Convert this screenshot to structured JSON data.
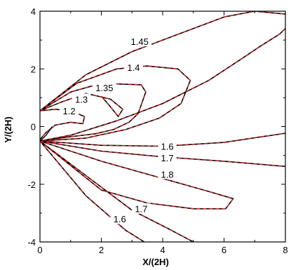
{
  "chart_data": {
    "type": "line",
    "title": "",
    "xlabel": "X/(2H)",
    "ylabel": "Y/(2H)",
    "xlim": [
      0,
      8
    ],
    "ylim": [
      -4,
      4
    ],
    "x_ticks": [
      0,
      2,
      4,
      6,
      8
    ],
    "y_ticks": [
      -4,
      -2,
      0,
      2,
      4
    ],
    "x_tick_labels": [
      "0",
      "2",
      "4",
      "6",
      "8"
    ],
    "y_tick_labels": [
      "-4",
      "-2",
      "0",
      "2",
      "4"
    ],
    "series_styles": {
      "reference": {
        "color": "#000000",
        "dash": "solid"
      },
      "computed": {
        "color": "#d62020",
        "dash": "dashed"
      }
    },
    "contours": [
      {
        "level": "1.2",
        "points": [
          [
            0,
            0.55
          ],
          [
            0.5,
            0.6
          ],
          [
            1.0,
            0.55
          ],
          [
            1.45,
            0.35
          ],
          [
            1.4,
            0.1
          ],
          [
            1.0,
            0.15
          ],
          [
            0.5,
            0.05
          ],
          [
            0.2,
            -0.2
          ],
          [
            0,
            -0.45
          ]
        ]
      },
      {
        "level": "1.3",
        "points": [
          [
            0,
            0.55
          ],
          [
            0.7,
            0.85
          ],
          [
            1.5,
            1.15
          ],
          [
            2.3,
            0.95
          ],
          [
            2.7,
            0.6
          ],
          [
            2.55,
            0.35
          ],
          [
            2.25,
            0.75
          ],
          [
            2.0,
            1.05
          ]
        ]
      },
      {
        "level": "1.35",
        "points": [
          [
            0,
            0.55
          ],
          [
            1.0,
            1.2
          ],
          [
            2.0,
            1.5
          ],
          [
            3.3,
            1.45
          ],
          [
            3.45,
            1.2
          ],
          [
            3.2,
            0.45
          ],
          [
            2.9,
            0.15
          ],
          [
            2.4,
            -0.1
          ],
          [
            1.8,
            -0.25
          ],
          [
            1.0,
            -0.35
          ],
          [
            0,
            -0.5
          ]
        ]
      },
      {
        "level": "1.4",
        "points": [
          [
            0,
            0.55
          ],
          [
            1.2,
            1.5
          ],
          [
            2.5,
            2.0
          ],
          [
            3.5,
            2.1
          ],
          [
            4.5,
            2.0
          ],
          [
            4.9,
            1.6
          ],
          [
            4.6,
            0.8
          ],
          [
            3.9,
            0.3
          ],
          [
            2.8,
            -0.1
          ],
          [
            1.5,
            -0.4
          ],
          [
            0,
            -0.5
          ]
        ]
      },
      {
        "level": "1.45",
        "points": [
          [
            0,
            0.55
          ],
          [
            1.5,
            1.8
          ],
          [
            3.0,
            2.6
          ],
          [
            4.5,
            3.2
          ],
          [
            6.0,
            3.8
          ],
          [
            7.0,
            4.0
          ],
          [
            8.0,
            3.9
          ],
          [
            8.2,
            3.6
          ],
          [
            7.8,
            3.2
          ],
          [
            7.2,
            2.8
          ],
          [
            6.5,
            2.3
          ],
          [
            5.5,
            1.6
          ],
          [
            4.0,
            0.8
          ],
          [
            2.5,
            0.2
          ],
          [
            1.0,
            -0.3
          ],
          [
            0,
            -0.5
          ]
        ]
      },
      {
        "level": "1.6",
        "points": [
          [
            0,
            -0.5
          ],
          [
            2.0,
            -0.65
          ],
          [
            4.0,
            -0.68
          ],
          [
            6.0,
            -0.55
          ],
          [
            8.2,
            -0.2
          ]
        ]
      },
      {
        "level": "1.7",
        "points": [
          [
            0,
            -0.5
          ],
          [
            2.0,
            -0.85
          ],
          [
            4.0,
            -1.05
          ],
          [
            6.0,
            -1.2
          ],
          [
            8.2,
            -1.4
          ]
        ]
      },
      {
        "level": "1.8",
        "points": [
          [
            0,
            -0.5
          ],
          [
            2.0,
            -1.2
          ],
          [
            4.0,
            -1.8
          ],
          [
            5.5,
            -2.25
          ],
          [
            6.3,
            -2.5
          ],
          [
            6.05,
            -2.85
          ],
          [
            5.0,
            -2.85
          ],
          [
            3.5,
            -2.65
          ],
          [
            2.0,
            -2.2
          ],
          [
            0,
            -0.5
          ]
        ]
      },
      {
        "level": "1.7",
        "points": [
          [
            0,
            -0.5
          ],
          [
            1.5,
            -1.7
          ],
          [
            3.0,
            -2.9
          ],
          [
            4.2,
            -3.55
          ],
          [
            5.0,
            -4.0
          ]
        ]
      },
      {
        "level": "1.6",
        "points": [
          [
            0,
            -0.5
          ],
          [
            1.5,
            -2.4
          ],
          [
            2.8,
            -3.6
          ],
          [
            3.4,
            -4.0
          ]
        ]
      }
    ],
    "extra_black_line": {
      "points": [
        [
          0,
          -0.5
        ],
        [
          0.2,
          -0.3
        ],
        [
          0.4,
          0.0
        ]
      ]
    },
    "label_anchors": [
      {
        "level": "1.45",
        "x": 3.25,
        "y": 2.95
      },
      {
        "level": "1.4",
        "x": 3.05,
        "y": 2.05
      },
      {
        "level": "1.35",
        "x": 2.1,
        "y": 1.35
      },
      {
        "level": "1.3",
        "x": 1.35,
        "y": 0.95
      },
      {
        "level": "1.2",
        "x": 0.95,
        "y": 0.55
      },
      {
        "level": "1.6",
        "x": 4.15,
        "y": -0.68
      },
      {
        "level": "1.7",
        "x": 4.15,
        "y": -1.08
      },
      {
        "level": "1.8",
        "x": 4.15,
        "y": -1.65
      },
      {
        "level": "1.7",
        "x": 3.3,
        "y": -2.85
      },
      {
        "level": "1.6",
        "x": 2.6,
        "y": -3.2
      }
    ]
  }
}
